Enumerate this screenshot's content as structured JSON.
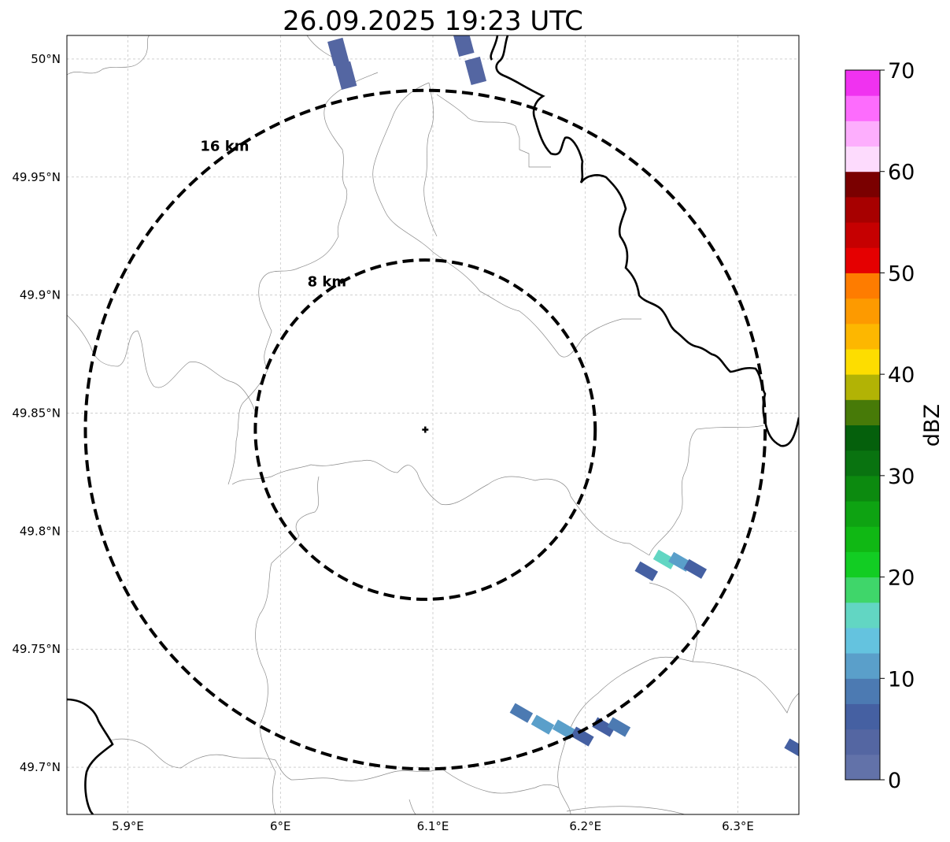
{
  "title": "26.09.2025 19:23 UTC",
  "map": {
    "lon_range": [
      5.86,
      6.34
    ],
    "lat_range": [
      49.68,
      50.01
    ],
    "lon_ticks": [
      {
        "value": 5.9,
        "label": "5.9°E"
      },
      {
        "value": 6.0,
        "label": "6°E"
      },
      {
        "value": 6.1,
        "label": "6.1°E"
      },
      {
        "value": 6.2,
        "label": "6.2°E"
      },
      {
        "value": 6.3,
        "label": "6.3°E"
      }
    ],
    "lat_ticks": [
      {
        "value": 50.0,
        "label": "50°N"
      },
      {
        "value": 49.95,
        "label": "49.95°N"
      },
      {
        "value": 49.9,
        "label": "49.9°N"
      },
      {
        "value": 49.85,
        "label": "49.85°N"
      },
      {
        "value": 49.8,
        "label": "49.8°N"
      },
      {
        "value": 49.75,
        "label": "49.75°N"
      },
      {
        "value": 49.7,
        "label": "49.7°N"
      }
    ],
    "grid": true,
    "radar_site": {
      "lon": 6.095,
      "lat": 49.843
    },
    "rings": [
      {
        "radius_km": 8,
        "label": "8 km"
      },
      {
        "radius_km": 16,
        "label": "16 km"
      }
    ]
  },
  "colorbar": {
    "label": "dBZ",
    "min": 0,
    "max": 70,
    "step": 2.5,
    "ticks": [
      {
        "value": 0,
        "label": "0"
      },
      {
        "value": 10,
        "label": "10"
      },
      {
        "value": 20,
        "label": "20"
      },
      {
        "value": 30,
        "label": "30"
      },
      {
        "value": 40,
        "label": "40"
      },
      {
        "value": 50,
        "label": "50"
      },
      {
        "value": 60,
        "label": "60"
      },
      {
        "value": 70,
        "label": "70"
      }
    ],
    "colors": [
      "#6272a9",
      "#5466a2",
      "#4560a2",
      "#4c7ab2",
      "#5a9fca",
      "#64c3df",
      "#62d6c3",
      "#3fd66a",
      "#12cd23",
      "#10b814",
      "#0ea312",
      "#0c8a0f",
      "#097310",
      "#05600c",
      "#477a08",
      "#b2b305",
      "#fddd00",
      "#fdb700",
      "#fd9a00",
      "#fe7c00",
      "#e50001",
      "#c60001",
      "#a70000",
      "#7a0000",
      "#fddbfd",
      "#fdaefd",
      "#fd6cfd",
      "#f032f0"
    ]
  },
  "echoes": [
    {
      "lon": 6.038,
      "lat": 50.003,
      "dbz": 3
    },
    {
      "lon": 6.043,
      "lat": 49.993,
      "dbz": 3
    },
    {
      "lon": 6.12,
      "lat": 50.007,
      "dbz": 4
    },
    {
      "lon": 6.128,
      "lat": 49.995,
      "dbz": 4
    },
    {
      "lon": 6.24,
      "lat": 49.783,
      "dbz": 5
    },
    {
      "lon": 6.252,
      "lat": 49.788,
      "dbz": 17
    },
    {
      "lon": 6.262,
      "lat": 49.787,
      "dbz": 11
    },
    {
      "lon": 6.272,
      "lat": 49.784,
      "dbz": 6
    },
    {
      "lon": 6.158,
      "lat": 49.723,
      "dbz": 9
    },
    {
      "lon": 6.172,
      "lat": 49.718,
      "dbz": 12
    },
    {
      "lon": 6.186,
      "lat": 49.716,
      "dbz": 11
    },
    {
      "lon": 6.198,
      "lat": 49.713,
      "dbz": 5
    },
    {
      "lon": 6.212,
      "lat": 49.717,
      "dbz": 6
    },
    {
      "lon": 6.222,
      "lat": 49.717,
      "dbz": 9
    },
    {
      "lon": 6.338,
      "lat": 49.708,
      "dbz": 6
    }
  ]
}
